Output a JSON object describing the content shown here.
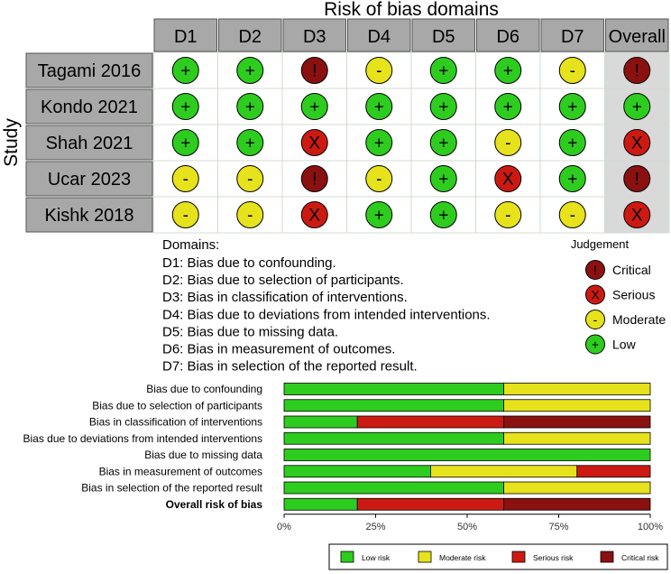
{
  "traffic_light": {
    "title": "Risk of bias domains",
    "y_label": "Study",
    "domains": [
      "D1",
      "D2",
      "D3",
      "D4",
      "D5",
      "D6",
      "D7",
      "Overall"
    ],
    "studies": [
      {
        "name": "Tagami 2016",
        "judgements": [
          "low",
          "low",
          "critical",
          "moderate",
          "low",
          "low",
          "moderate",
          "critical"
        ]
      },
      {
        "name": "Kondo 2021",
        "judgements": [
          "low",
          "low",
          "low",
          "low",
          "low",
          "low",
          "low",
          "low"
        ]
      },
      {
        "name": "Shah 2021",
        "judgements": [
          "low",
          "low",
          "serious",
          "low",
          "low",
          "moderate",
          "low",
          "serious"
        ]
      },
      {
        "name": "Ucar 2023",
        "judgements": [
          "moderate",
          "moderate",
          "critical",
          "moderate",
          "low",
          "serious",
          "low",
          "critical"
        ]
      },
      {
        "name": "Kishk 2018",
        "judgements": [
          "moderate",
          "moderate",
          "serious",
          "low",
          "low",
          "moderate",
          "moderate",
          "serious"
        ]
      }
    ],
    "domains_key": {
      "heading": "Domains:",
      "lines": [
        "D1: Bias due to confounding.",
        "D2: Bias due to selection of participants.",
        "D3: Bias in classification of interventions.",
        "D4: Bias due to deviations from intended interventions.",
        "D5: Bias due to missing data.",
        "D6: Bias in measurement of outcomes.",
        "D7: Bias in selection of the reported result."
      ]
    },
    "judgement_legend": {
      "heading": "Judgement",
      "items": [
        {
          "key": "critical",
          "label": "Critical"
        },
        {
          "key": "serious",
          "label": "Serious"
        },
        {
          "key": "moderate",
          "label": "Moderate"
        },
        {
          "key": "low",
          "label": "Low"
        }
      ]
    },
    "symbols": {
      "low": "+",
      "moderate": "-",
      "serious": "X",
      "critical": "!"
    },
    "colors": {
      "low": "#2ecc1f",
      "moderate": "#e6e21c",
      "serious": "#cc1a12",
      "critical": "#8a1110",
      "header": "#a8a8a8",
      "overall_bg": "#d9d9d9"
    }
  },
  "chart_data": {
    "type": "bar",
    "orientation": "horizontal",
    "stacked": true,
    "categories": [
      "Bias due to confounding",
      "Bias due to selection of participants",
      "Bias in classification of interventions",
      "Bias due to deviations from intended interventions",
      "Bias due to missing data",
      "Bias in measurement of outcomes",
      "Bias in selection of the reported result",
      "Overall risk of bias"
    ],
    "series": [
      {
        "name": "Low risk",
        "color": "#2ecc1f",
        "values": [
          60,
          60,
          20,
          60,
          100,
          40,
          60,
          20
        ]
      },
      {
        "name": "Moderate risk",
        "color": "#e6e21c",
        "values": [
          40,
          40,
          0,
          40,
          0,
          40,
          40,
          0
        ]
      },
      {
        "name": "Serious risk",
        "color": "#cc1a12",
        "values": [
          0,
          0,
          40,
          0,
          0,
          20,
          0,
          40
        ]
      },
      {
        "name": "Critical risk",
        "color": "#8a1110",
        "values": [
          0,
          0,
          40,
          0,
          0,
          0,
          0,
          40
        ]
      }
    ],
    "xlim": [
      0,
      100
    ],
    "xticks": [
      "0%",
      "25%",
      "50%",
      "75%",
      "100%"
    ],
    "legend_position": "bottom"
  }
}
